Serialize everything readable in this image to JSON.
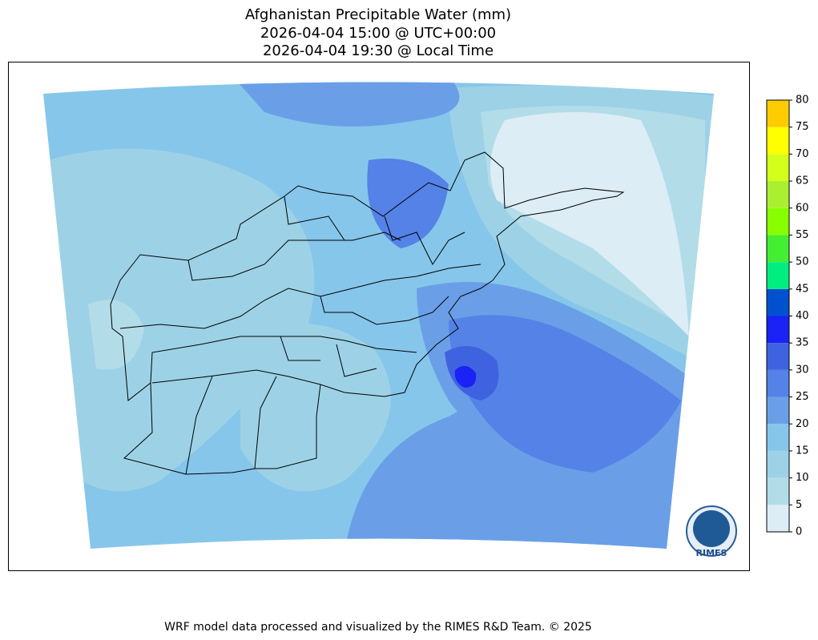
{
  "map": {
    "title": [
      "Afghanistan Precipitable Water (mm)",
      "2026-04-04 15:00 @ UTC+00:00",
      "2026-04-04 19:30 @ Local Time"
    ],
    "colorbar": {
      "ticks": [
        0,
        5,
        10,
        15,
        20,
        25,
        30,
        35,
        40,
        45,
        50,
        55,
        60,
        65,
        70,
        75,
        80
      ],
      "colors": [
        "#dcedf6",
        "#b2dce8",
        "#9dd2e6",
        "#86c6ea",
        "#6a9fe8",
        "#5482e6",
        "#3f63e0",
        "#1a22f5",
        "#0050d0",
        "#00ee80",
        "#44ee33",
        "#88ff00",
        "#aaf030",
        "#d4ff1a",
        "#ffff00",
        "#ffcc00"
      ]
    },
    "logo": "RIMES"
  },
  "footer": "WRF model data processed and visualized by the RIMES R&D Team. © 2025"
}
